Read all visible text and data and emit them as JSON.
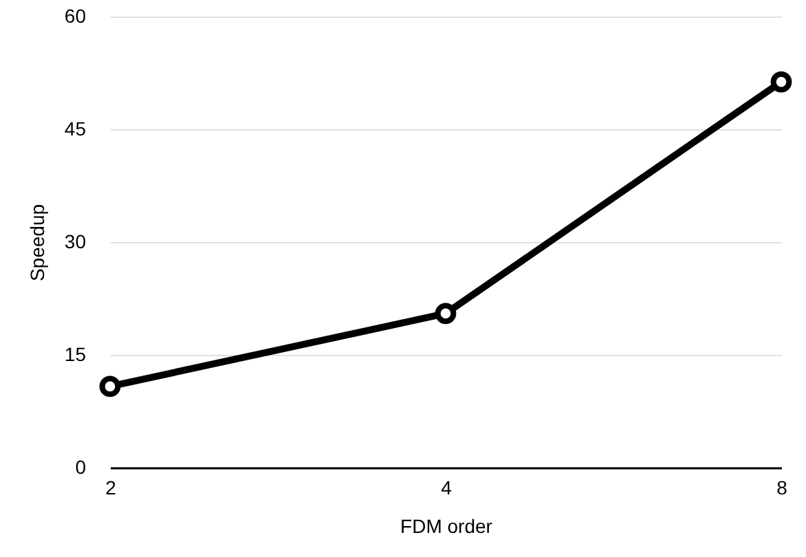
{
  "chart_data": {
    "type": "line",
    "xlabel": "FDM order",
    "ylabel": "Speedup",
    "categories": [
      "2",
      "4",
      "8"
    ],
    "series": [
      {
        "color": "#000000",
        "values": [
          10.8,
          20.5,
          51.3
        ]
      }
    ],
    "ylim": [
      0,
      60
    ],
    "yticks": [
      0,
      15,
      30,
      45,
      60
    ],
    "grid": "y",
    "marker": "circle",
    "line_style": "solid"
  }
}
